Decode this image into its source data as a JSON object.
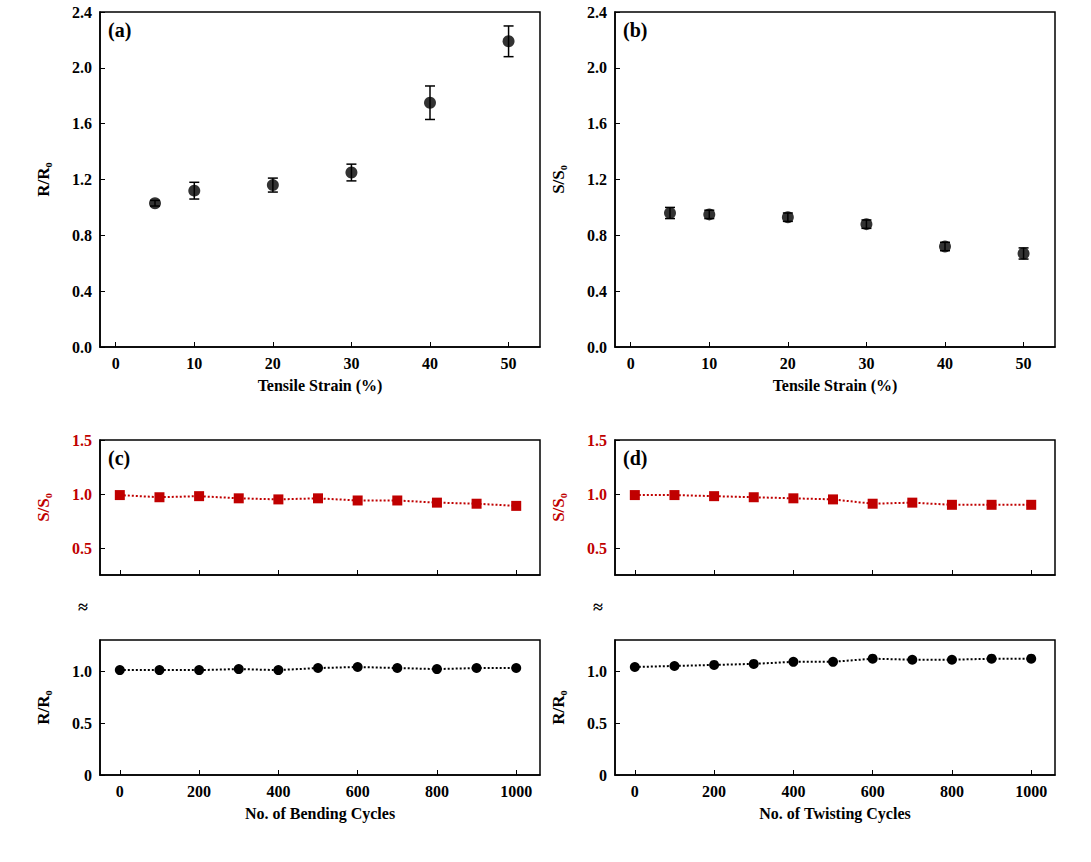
{
  "chart_data": [
    {
      "type": "scatter",
      "title": "(a)",
      "xlabel": "Tensile Strain (%)",
      "ylabel": "R/R₀",
      "x": [
        5,
        10,
        20,
        30,
        40,
        50
      ],
      "values": [
        1.03,
        1.12,
        1.16,
        1.25,
        1.75,
        2.19
      ],
      "errors": [
        0.02,
        0.06,
        0.05,
        0.06,
        0.12,
        0.11
      ],
      "color": "#000000",
      "marker": "circle",
      "xlim": [
        -2,
        54
      ],
      "xticks": [
        0,
        10,
        20,
        30,
        40,
        50
      ],
      "ylim": [
        0,
        2.4
      ],
      "yticks": [
        {
          "value": 0,
          "label": "0.0"
        },
        0.4,
        0.8,
        {
          "value": 1.2,
          "label": "1.2"
        },
        1.6,
        {
          "value": 2,
          "label": "2.0"
        },
        2.4
      ],
      "grid": false
    },
    {
      "type": "scatter",
      "title": "(b)",
      "xlabel": "Tensile Strain (%)",
      "ylabel": "S/S₀",
      "x": [
        5,
        10,
        20,
        30,
        40,
        50
      ],
      "values": [
        0.96,
        0.95,
        0.93,
        0.88,
        0.72,
        0.67
      ],
      "errors": [
        0.04,
        0.03,
        0.03,
        0.03,
        0.03,
        0.04
      ],
      "color": "#000000",
      "marker": "circle",
      "xlim": [
        -2,
        54
      ],
      "xticks": [
        0,
        10,
        20,
        30,
        40,
        50
      ],
      "ylim": [
        0,
        2.4
      ],
      "yticks": [
        {
          "value": 0,
          "label": "0.0"
        },
        0.4,
        0.8,
        {
          "value": 1.2,
          "label": "1.2"
        },
        1.6,
        {
          "value": 2,
          "label": "2.0"
        },
        2.4
      ],
      "grid": false
    },
    {
      "type": "line",
      "title": "(c)",
      "xlabel": "No. of Bending Cycles",
      "x": [
        0,
        100,
        200,
        300,
        400,
        500,
        600,
        700,
        800,
        900,
        1000
      ],
      "series": [
        {
          "name": "S/S₀",
          "color": "#c00000",
          "marker": "square",
          "line_style": "dotted",
          "axis": "y2",
          "values": [
            0.99,
            0.97,
            0.98,
            0.96,
            0.95,
            0.96,
            0.94,
            0.94,
            0.92,
            0.91,
            0.89
          ]
        },
        {
          "name": "R/R₀",
          "color": "#000000",
          "marker": "circle",
          "line_style": "dotted",
          "values": [
            1.01,
            1.01,
            1.01,
            1.02,
            1.01,
            1.03,
            1.04,
            1.03,
            1.02,
            1.03,
            1.03
          ]
        }
      ],
      "xlim": [
        -50,
        1060
      ],
      "xticks": [
        0,
        200,
        400,
        600,
        800,
        1000
      ],
      "ylim": [
        0,
        1.3
      ],
      "yticks": [
        0,
        0.5,
        {
          "value": 1,
          "label": "1.0"
        }
      ],
      "y2lim": [
        0.25,
        1.5
      ],
      "y2ticks": [
        0.5,
        {
          "value": 1,
          "label": "1.0"
        },
        1.5
      ],
      "axis_break": "≈",
      "grid": false
    },
    {
      "type": "line",
      "title": "(d)",
      "xlabel": "No. of Twisting Cycles",
      "x": [
        0,
        100,
        200,
        300,
        400,
        500,
        600,
        700,
        800,
        900,
        1000
      ],
      "series": [
        {
          "name": "S/S₀",
          "color": "#c00000",
          "marker": "square",
          "line_style": "dotted",
          "axis": "y2",
          "values": [
            0.99,
            0.99,
            0.98,
            0.97,
            0.96,
            0.95,
            0.91,
            0.92,
            0.9,
            0.9,
            0.9
          ]
        },
        {
          "name": "R/R₀",
          "color": "#000000",
          "marker": "circle",
          "line_style": "dotted",
          "values": [
            1.04,
            1.05,
            1.06,
            1.07,
            1.09,
            1.09,
            1.12,
            1.11,
            1.11,
            1.12,
            1.12
          ]
        }
      ],
      "xlim": [
        -50,
        1060
      ],
      "xticks": [
        0,
        200,
        400,
        600,
        800,
        1000
      ],
      "ylim": [
        0,
        1.3
      ],
      "yticks": [
        0,
        0.5,
        {
          "value": 1,
          "label": "1.0"
        }
      ],
      "y2lim": [
        0.25,
        1.5
      ],
      "y2ticks": [
        0.5,
        {
          "value": 1,
          "label": "1.0"
        },
        1.5
      ],
      "axis_break": "≈",
      "grid": false
    }
  ]
}
